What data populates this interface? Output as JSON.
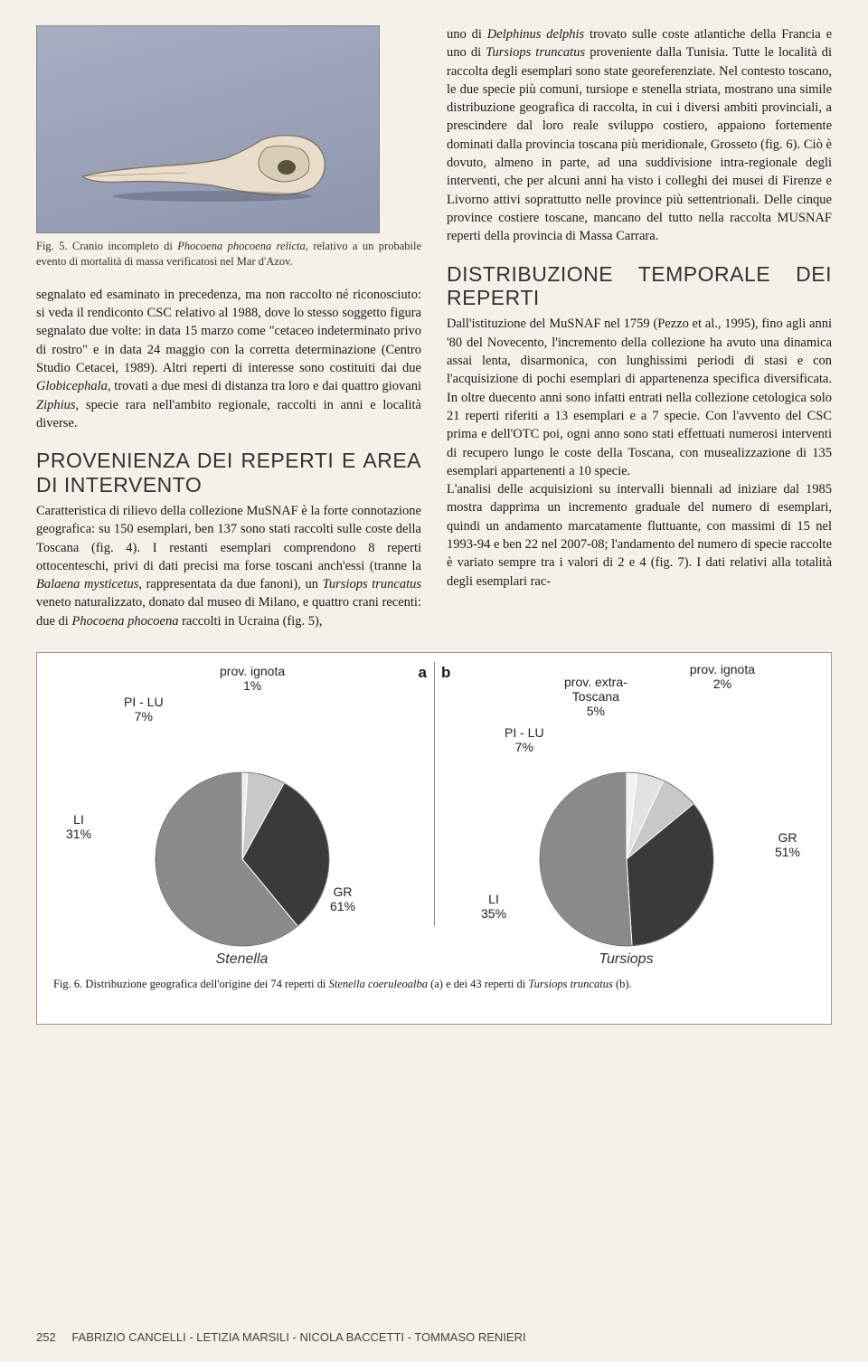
{
  "figure5": {
    "caption_prefix": "Fig. 5. Cranio incompleto di ",
    "caption_italic": "Phocoena phocoena relicta",
    "caption_suffix": ", relativo a un probabile evento di mortalità di massa verificatosi nel Mar d'Azov."
  },
  "col1": {
    "para1": "segnalato ed esaminato in precedenza, ma non raccolto né riconosciuto: si veda il rendiconto CSC relativo al 1988, dove lo stesso soggetto figura segnalato due volte: in data 15 marzo come \"cetaceo indeterminato privo di rostro\" e in data 24 maggio con la corretta determinazione (Centro Studio Cetacei, 1989). Altri reperti di interesse sono costituiti dai due ",
    "para1_it1": "Globicephala",
    "para1_mid": ", trovati a due mesi di distanza tra loro e dai quattro giovani ",
    "para1_it2": "Ziphius",
    "para1_end": ", specie rara nell'ambito regionale, raccolti in anni e località diverse.",
    "head1": "PROVENIENZA DEI REPERTI E AREA DI INTERVENTO",
    "para2_a": "Caratteristica di rilievo della collezione MuSNAF è la forte connotazione geografica: su 150 esemplari, ben 137 sono stati raccolti sulle coste della Toscana (fig. 4). I restanti esemplari comprendono 8 reperti ottocenteschi, privi di dati precisi ma forse toscani anch'essi (tranne la ",
    "para2_it1": "Balaena mysticetus",
    "para2_b": ", rappresentata da due fanoni), un ",
    "para2_it2": "Tursiops truncatus",
    "para2_c": " veneto naturalizzato, donato dal museo di Milano, e quattro crani recenti: due di ",
    "para2_it3": "Phocoena phocoena",
    "para2_d": " raccolti in Ucraina (fig. 5),"
  },
  "col2": {
    "para1_a": "uno di ",
    "para1_it1": "Delphinus delphis",
    "para1_b": " trovato sulle coste atlantiche della Francia e uno di ",
    "para1_it2": "Tursiops truncatus",
    "para1_c": " proveniente dalla Tunisia. Tutte le località di raccolta degli esemplari sono state georeferenziate. Nel contesto toscano, le due specie più comuni, tursiope e stenella striata, mostrano una simile distribuzione geografica di raccolta, in cui i diversi ambiti provinciali, a prescindere dal loro reale sviluppo costiero, appaiono fortemente dominati dalla provincia toscana più meridionale, Grosseto (fig. 6). Ciò è dovuto, almeno in parte, ad una suddivisione intra-regionale degli interventi, che per alcuni anni ha visto i colleghi dei musei di Firenze e Livorno attivi soprattutto nelle province più settentrionali. Delle cinque province costiere toscane, mancano del tutto nella raccolta MUSNAF reperti della provincia di Massa Carrara.",
    "head1": "DISTRIBUZIONE TEMPORALE DEI REPERTI",
    "para2": "Dall'istituzione del MuSNAF nel 1759 (Pezzo et al., 1995), fino agli anni '80 del Novecento, l'incremento della collezione ha avuto una dinamica assai lenta, disarmonica, con lunghissimi periodi di stasi e con l'acquisizione di pochi esemplari di appartenenza specifica diversificata. In oltre duecento anni sono infatti entrati nella collezione cetologica solo 21 reperti riferiti a 13 esemplari e a 7 specie. Con l'avvento del CSC prima e dell'OTC poi, ogni anno sono stati effettuati numerosi interventi di recupero lungo le coste della Toscana, con musealizzazione di 135 esemplari appartenenti a 10 specie.",
    "para3": "L'analisi delle acquisizioni su intervalli biennali ad iniziare dal 1985 mostra dapprima un incremento graduale del numero di esemplari, quindi un andamento marcatamente fluttuante, con massimi di 15 nel 1993-94 e ben 22 nel 2007-08; l'andamento del numero di specie raccolte è variato sempre tra i valori di 2 e 4 (fig. 7). I dati relativi alla totalità degli esemplari rac-"
  },
  "charts": {
    "panel_a": {
      "label": "a",
      "name": "Stenella",
      "slices": [
        {
          "label": "GR",
          "pct": "61%",
          "value": 61,
          "color": "#8a8a8a"
        },
        {
          "label": "LI",
          "pct": "31%",
          "value": 31,
          "color": "#3a3a3a"
        },
        {
          "label": "PI - LU",
          "pct": "7%",
          "value": 7,
          "color": "#c8c8c8"
        },
        {
          "label": "prov. ignota",
          "pct": "1%",
          "value": 1,
          "color": "#eeeeee"
        }
      ],
      "radius": 96
    },
    "panel_b": {
      "label": "b",
      "name": "Tursiops",
      "slices": [
        {
          "label": "GR",
          "pct": "51%",
          "value": 51,
          "color": "#8a8a8a"
        },
        {
          "label": "LI",
          "pct": "35%",
          "value": 35,
          "color": "#3a3a3a"
        },
        {
          "label": "PI - LU",
          "pct": "7%",
          "value": 7,
          "color": "#c8c8c8"
        },
        {
          "label": "prov. extra-Toscana",
          "pct": "5%",
          "value": 5,
          "color": "#e2e2e2"
        },
        {
          "label": "prov. ignota",
          "pct": "2%",
          "value": 2,
          "color": "#f2f2f2"
        }
      ],
      "radius": 96
    },
    "caption_prefix": "Fig. 6. Distribuzione geografica dell'origine dei 74 reperti di ",
    "caption_it1": "Stenella coeruleoalba",
    "caption_mid": " (a) e dei 43 reperti di ",
    "caption_it2": "Tursiops truncatus",
    "caption_end": " (b)."
  },
  "footer": {
    "page": "252",
    "authors": "FABRIZIO CANCELLI - LETIZIA MARSILI - NICOLA BACCETTI - TOMMASO RENIERI"
  }
}
